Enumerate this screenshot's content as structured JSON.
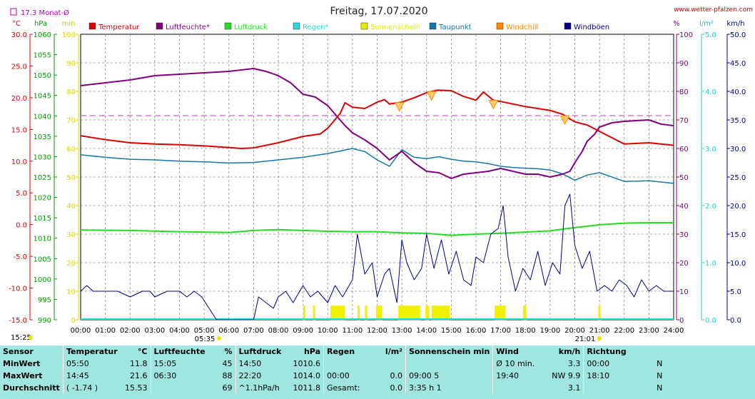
{
  "title": "Freitag, 17.07.2020",
  "site": "www.wetter-pfalzen.com",
  "monthly_avg_label": "17.3 Monat-Ø",
  "units_left": [
    "°C",
    "hPa",
    "min"
  ],
  "units_right": [
    "%",
    "l/m²",
    "km/h"
  ],
  "legend": [
    {
      "label": "Temperatur",
      "color": "#dd0000"
    },
    {
      "label": "Luftfeuchte*",
      "color": "#800080"
    },
    {
      "label": "Luftdruck",
      "color": "#22dd22"
    },
    {
      "label": "Regen*",
      "color": "#22dddd"
    },
    {
      "label": "Sonnenschein",
      "color": "#e8e800"
    },
    {
      "label": "Taupunkt",
      "color": "#1177aa"
    },
    {
      "label": "Windchill",
      "color": "#ff8800"
    },
    {
      "label": "Windböen",
      "color": "#000088"
    }
  ],
  "sunrise": "05:35",
  "sunset": "21:01",
  "left_bottom_time": "15:25",
  "chart_data": {
    "type": "line",
    "x_ticks": [
      "00:00",
      "01:00",
      "02:00",
      "03:00",
      "04:00",
      "05:00",
      "06:00",
      "07:00",
      "08:00",
      "09:00",
      "10:00",
      "11:00",
      "12:00",
      "13:00",
      "14:00",
      "15:00",
      "16:00",
      "17:00",
      "18:00",
      "19:00",
      "20:00",
      "21:00",
      "22:00",
      "23:00",
      "24:00"
    ],
    "axes": {
      "temperature": {
        "unit": "°C",
        "range": [
          -15,
          30
        ],
        "ticks": [
          "30.0",
          "25.0",
          "20.0",
          "15.0",
          "10.0",
          "5.0",
          "0.0",
          "-5.0",
          "-10.0",
          "-15.0"
        ],
        "color": "#dd0000"
      },
      "pressure": {
        "unit": "hPa",
        "range": [
          990,
          1060
        ],
        "ticks": [
          "1060",
          "1055",
          "1050",
          "1045",
          "1040",
          "1035",
          "1030",
          "1025",
          "1020",
          "1015",
          "1010",
          "1005",
          "1000",
          "995",
          "990"
        ],
        "color": "#009900"
      },
      "sunshine": {
        "unit": "min",
        "range": [
          0,
          100
        ],
        "ticks": [
          "100",
          "90",
          "80",
          "70",
          "60",
          "50",
          "40",
          "30",
          "20",
          "10",
          "0"
        ],
        "color": "#d8d800"
      },
      "humidity": {
        "unit": "%",
        "range": [
          0,
          100
        ],
        "ticks": [
          "100",
          "90",
          "80",
          "70",
          "60",
          "50",
          "40",
          "30",
          "20",
          "10",
          "0"
        ],
        "color": "#800080"
      },
      "rain": {
        "unit": "l/m²",
        "range": [
          0,
          5
        ],
        "ticks": [
          "5.0",
          "4.0",
          "3.0",
          "2.0",
          "1.0",
          "0.0"
        ],
        "color": "#22cccc"
      },
      "wind": {
        "unit": "km/h",
        "range": [
          0,
          50
        ],
        "ticks": [
          "50.0",
          "45.0",
          "40.0",
          "35.0",
          "30.0",
          "25.0",
          "20.0",
          "15.0",
          "10.0",
          "5.0",
          "0.0"
        ],
        "color": "#000088"
      }
    },
    "monthly_avg_humidity": 71.5,
    "series": [
      {
        "name": "Temperatur",
        "axis": "temperature",
        "color": "#dd0000",
        "x": [
          0,
          1,
          2,
          3,
          4,
          5,
          5.83,
          6.5,
          7,
          8,
          9,
          9.7,
          10,
          10.5,
          10.7,
          11,
          11.5,
          12,
          12.3,
          12.5,
          13,
          13.5,
          14,
          14.45,
          15,
          15.5,
          16,
          16.3,
          16.7,
          17,
          18,
          19,
          19.5,
          20,
          20.5,
          21,
          21.5,
          22,
          23,
          24
        ],
        "y": [
          14.0,
          13.4,
          12.9,
          12.7,
          12.6,
          12.4,
          12.2,
          12.0,
          12.1,
          12.9,
          13.9,
          14.3,
          15.2,
          17.5,
          19.2,
          18.5,
          18.3,
          19.3,
          19.7,
          19.0,
          19.3,
          20.0,
          20.8,
          21.2,
          21.1,
          20.2,
          19.6,
          20.9,
          19.6,
          19.4,
          18.6,
          18.0,
          17.4,
          16.2,
          15.7,
          14.7,
          13.7,
          12.7,
          12.9,
          12.5
        ]
      },
      {
        "name": "Luftfeuchte*",
        "axis": "humidity",
        "color": "#800080",
        "x": [
          0,
          0.5,
          1,
          2,
          3,
          4,
          5,
          6,
          6.5,
          7,
          7.5,
          8,
          8.5,
          9,
          9.5,
          10,
          10.3,
          10.7,
          11,
          11.5,
          12,
          12.5,
          13,
          13.5,
          14,
          14.5,
          15,
          15.5,
          16,
          16.5,
          17,
          17.5,
          18,
          18.5,
          19,
          19.5,
          19.8,
          20,
          20.3,
          20.5,
          20.8,
          21,
          21.5,
          22,
          23,
          23.5,
          24
        ],
        "y": [
          82,
          82.5,
          83,
          84,
          85.5,
          86,
          86.5,
          87,
          87.5,
          88,
          87,
          85.5,
          83,
          79,
          78,
          75,
          72,
          68,
          65.5,
          63,
          60,
          56,
          59,
          55,
          52,
          51.5,
          49.5,
          51,
          51.5,
          52,
          53,
          52,
          51,
          51,
          50,
          51,
          52,
          55,
          59,
          62.5,
          65,
          67.5,
          69,
          69.5,
          70,
          68.5,
          68
        ]
      },
      {
        "name": "Luftdruck",
        "axis": "pressure",
        "color": "#22dd22",
        "x": [
          0,
          2,
          4,
          6,
          7,
          8,
          9,
          10,
          11,
          12,
          13,
          14,
          15,
          16,
          17,
          18,
          19,
          20,
          21,
          22,
          23,
          24
        ],
        "y": [
          1012.0,
          1011.9,
          1011.6,
          1011.4,
          1011.9,
          1012.1,
          1011.9,
          1011.7,
          1011.6,
          1011.6,
          1011.3,
          1011.2,
          1010.7,
          1011.0,
          1011.2,
          1011.5,
          1011.8,
          1012.6,
          1013.3,
          1013.7,
          1013.8,
          1013.8
        ]
      },
      {
        "name": "Taupunkt",
        "axis": "temperature",
        "color": "#1177aa",
        "x": [
          0,
          1,
          2,
          3,
          4,
          5,
          6,
          7,
          8,
          9,
          9.5,
          10,
          10.5,
          11,
          11.5,
          12,
          12.5,
          13,
          13.5,
          14,
          14.5,
          15,
          15.5,
          16,
          16.5,
          17,
          17.5,
          18,
          18.5,
          19,
          19.5,
          20,
          20.5,
          21,
          22,
          23,
          24
        ],
        "y": [
          11.0,
          10.6,
          10.3,
          10.2,
          10.0,
          9.9,
          9.7,
          9.8,
          10.2,
          10.6,
          10.9,
          11.2,
          11.6,
          12.0,
          11.5,
          10.2,
          9.2,
          11.8,
          10.6,
          10.4,
          10.7,
          10.3,
          10.0,
          9.9,
          9.6,
          9.2,
          9.0,
          8.9,
          8.8,
          8.6,
          8.0,
          7.0,
          7.8,
          8.2,
          6.8,
          6.9,
          6.5
        ]
      },
      {
        "name": "Windböen",
        "axis": "wind",
        "color": "#000088",
        "x": [
          0,
          0.25,
          0.5,
          1,
          1.5,
          2,
          2.5,
          2.8,
          3,
          3.5,
          4,
          4.3,
          4.6,
          4.9,
          5.2,
          5.5,
          6,
          6.5,
          7,
          7.2,
          7.5,
          7.8,
          8,
          8.3,
          8.6,
          9,
          9.3,
          9.6,
          10,
          10.3,
          10.6,
          11,
          11.2,
          11.5,
          11.8,
          12,
          12.3,
          12.5,
          12.8,
          13,
          13.2,
          13.5,
          13.8,
          14,
          14.3,
          14.6,
          14.9,
          15.2,
          15.5,
          15.8,
          16,
          16.3,
          16.6,
          16.9,
          17.1,
          17.3,
          17.6,
          17.9,
          18.2,
          18.5,
          18.8,
          19.1,
          19.4,
          19.6,
          19.8,
          20,
          20.3,
          20.6,
          20.9,
          21.2,
          21.5,
          21.8,
          22.1,
          22.4,
          22.7,
          23,
          23.3,
          23.6,
          24
        ],
        "y": [
          5,
          6,
          5,
          5,
          5,
          4,
          5,
          5,
          4,
          5,
          5,
          4,
          5,
          4,
          2,
          0,
          0,
          0,
          0,
          4,
          3,
          2,
          4,
          5,
          3,
          6,
          4,
          5,
          3,
          6,
          4,
          7,
          15,
          8,
          10,
          4,
          8,
          9,
          3,
          14,
          10,
          7,
          9,
          15,
          9,
          14,
          8,
          12,
          7,
          6,
          11,
          10,
          15,
          16,
          20,
          11,
          5,
          9,
          7,
          12,
          6,
          10,
          8,
          20,
          22,
          13,
          9,
          12,
          5,
          6,
          5,
          7,
          6,
          4,
          7,
          5,
          6,
          5,
          5
        ]
      }
    ],
    "windchill_dips": [
      12.9,
      14.2,
      16.7,
      19.6
    ],
    "sunshine_blocks": [
      [
        9.0,
        9.1
      ],
      [
        9.4,
        9.5
      ],
      [
        10.1,
        10.7
      ],
      [
        11.2,
        11.3
      ],
      [
        11.5,
        11.6
      ],
      [
        11.95,
        12.2
      ],
      [
        12.85,
        13.75
      ],
      [
        13.95,
        14.1
      ],
      [
        14.2,
        14.95
      ],
      [
        16.75,
        17.2
      ],
      [
        17.9,
        18.05
      ],
      [
        20.95,
        21.05
      ]
    ]
  },
  "footer": {
    "headers": [
      "Sensor",
      "Temperatur",
      "°C",
      "Luftfeuchte",
      "%",
      "Luftdruck",
      "hPa",
      "Regen",
      "l/m²",
      "Sonnenschein min",
      "Wind",
      "km/h",
      "Richtung"
    ],
    "rows": [
      [
        "MinWert",
        "05:50",
        "11.8",
        "15:05",
        "45",
        "14:50",
        "1010.6",
        "",
        "",
        "",
        "Ø 10 min.",
        "3.3",
        "00:00",
        "N"
      ],
      [
        "MaxWert",
        "14:45",
        "21.6",
        "06:30",
        "88",
        "22:20",
        "1014.0",
        "00:00",
        "0.0",
        "09:00   5",
        "19:40",
        "NW 9.9",
        "18:10",
        "N"
      ],
      [
        "Durchschnitt",
        "( -1.74 )",
        "15.53",
        "",
        "69",
        "^1.1hPa/h",
        "1011.8",
        "Gesamt:",
        "0.0",
        "3:35 h   1",
        "",
        "3.1",
        "",
        "N"
      ]
    ]
  }
}
